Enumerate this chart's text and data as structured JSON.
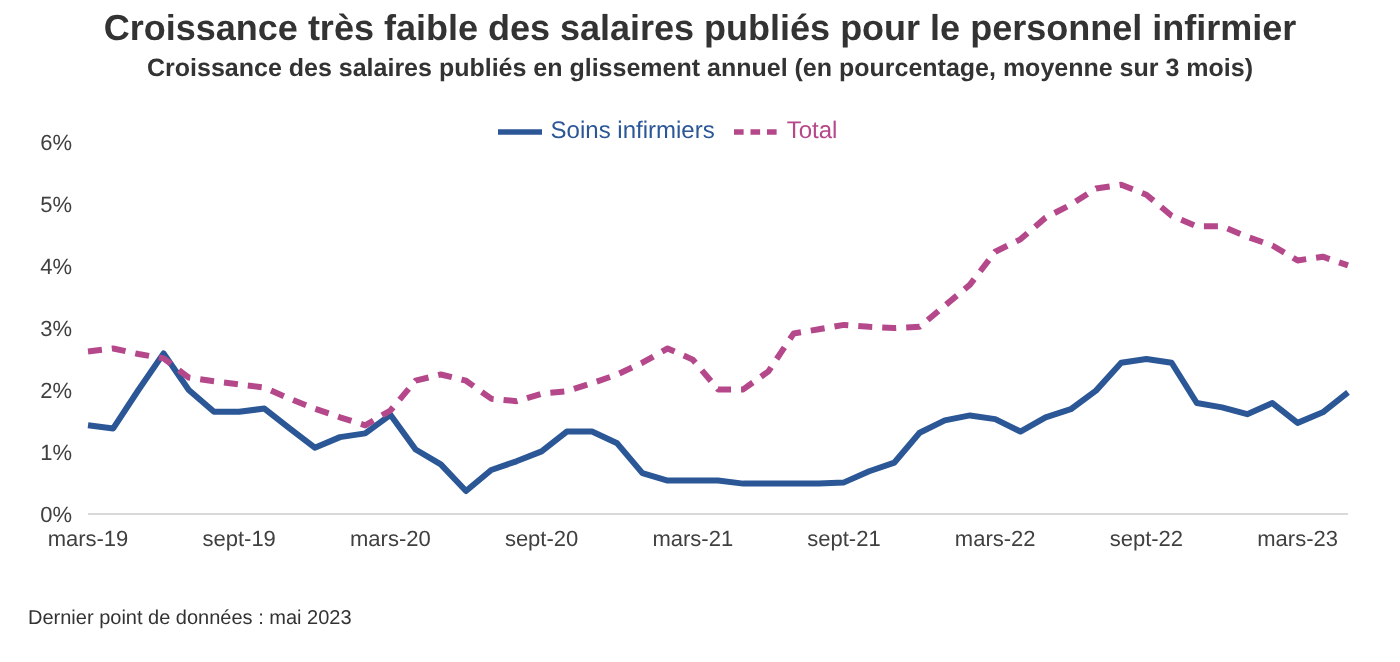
{
  "chart_data": {
    "type": "line",
    "title": "Croissance très faible des salaires publiés pour le personnel infirmier",
    "subtitle": "Croissance des salaires publiés en glissement annuel (en pourcentage, moyenne sur 3 mois)",
    "categories": [
      "mars-19",
      null,
      null,
      null,
      null,
      null,
      "sept-19",
      null,
      null,
      null,
      null,
      null,
      "mars-20",
      null,
      null,
      null,
      null,
      null,
      "sept-20",
      null,
      null,
      null,
      null,
      null,
      "mars-21",
      null,
      null,
      null,
      null,
      null,
      "sept-21",
      null,
      null,
      null,
      null,
      null,
      "mars-22",
      null,
      null,
      null,
      null,
      null,
      "sept-22",
      null,
      null,
      null,
      null,
      null,
      "mars-23",
      null,
      null
    ],
    "series": [
      {
        "name": "Soins infirmiers",
        "color": "#2b5797",
        "line_style": "solid",
        "values": [
          1.43,
          1.38,
          2.0,
          2.59,
          2.0,
          1.65,
          1.65,
          1.7,
          1.38,
          1.07,
          1.24,
          1.3,
          1.6,
          1.04,
          0.8,
          0.37,
          0.71,
          0.85,
          1.01,
          1.33,
          1.33,
          1.14,
          0.66,
          0.54,
          0.54,
          0.54,
          0.49,
          0.49,
          0.49,
          0.49,
          0.51,
          0.69,
          0.83,
          1.31,
          1.51,
          1.59,
          1.53,
          1.33,
          1.56,
          1.69,
          1.99,
          2.44,
          2.5,
          2.44,
          1.79,
          1.72,
          1.61,
          1.79,
          1.47,
          1.64,
          1.96
        ]
      },
      {
        "name": "Total",
        "color": "#b5488b",
        "line_style": "dashed",
        "values": [
          2.62,
          2.67,
          2.58,
          2.51,
          2.2,
          2.14,
          2.09,
          2.04,
          1.86,
          1.7,
          1.56,
          1.43,
          1.67,
          2.15,
          2.25,
          2.15,
          1.86,
          1.82,
          1.94,
          1.98,
          2.11,
          2.25,
          2.44,
          2.67,
          2.49,
          2.01,
          2.01,
          2.3,
          2.91,
          2.98,
          3.05,
          3.02,
          3.0,
          3.02,
          3.36,
          3.7,
          4.23,
          4.43,
          4.78,
          4.99,
          5.25,
          5.31,
          5.15,
          4.81,
          4.64,
          4.64,
          4.47,
          4.33,
          4.09,
          4.15,
          4.01
        ]
      }
    ],
    "ylim": [
      0,
      6
    ],
    "yticks": [
      {
        "value": 0,
        "label": "0%"
      },
      {
        "value": 1,
        "label": "1%"
      },
      {
        "value": 2,
        "label": "2%"
      },
      {
        "value": 3,
        "label": "3%"
      },
      {
        "value": 4,
        "label": "4%"
      },
      {
        "value": 5,
        "label": "5%"
      },
      {
        "value": 6,
        "label": "6%"
      }
    ],
    "grid": false,
    "legend": "top",
    "marker": "none",
    "annotations": [
      "Dernier point de données : mai 2023"
    ]
  }
}
